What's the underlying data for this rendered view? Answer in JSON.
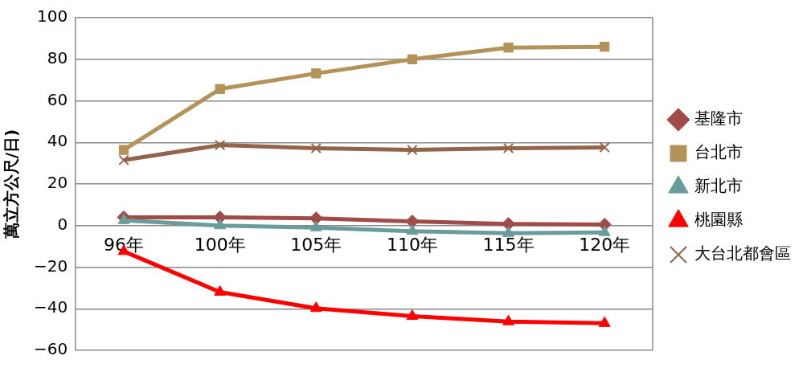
{
  "chart_data": {
    "type": "line",
    "ylabel": "萬立方公尺/日)",
    "categories": [
      "96年",
      "100年",
      "105年",
      "110年",
      "115年",
      "120年"
    ],
    "ylim": [
      -60,
      100
    ],
    "yticks": [
      -60,
      -40,
      -20,
      0,
      20,
      40,
      60,
      80,
      100
    ],
    "grid": "y",
    "legend": "right",
    "series": [
      {
        "name": "基隆市",
        "color": "#a04b48",
        "marker": "diamond",
        "values": [
          4,
          4,
          3.5,
          2,
          0.8,
          0.5
        ]
      },
      {
        "name": "台北市",
        "color": "#b39359",
        "marker": "square",
        "values": [
          36.4,
          65.7,
          73.2,
          80,
          85.6,
          86
        ]
      },
      {
        "name": "新北市",
        "color": "#6a9c9b",
        "marker": "triangle",
        "values": [
          2.5,
          0,
          -1,
          -2.7,
          -3.7,
          -3.3
        ]
      },
      {
        "name": "桃園縣",
        "color": "#ff0000",
        "marker": "triangle",
        "values": [
          -12.4,
          -32,
          -39.8,
          -43.6,
          -46.2,
          -47
        ]
      },
      {
        "name": "大台北都會區",
        "color": "#92644a",
        "marker": "cross",
        "values": [
          31.5,
          38.7,
          37.2,
          36.4,
          37.2,
          37.6
        ]
      }
    ]
  }
}
